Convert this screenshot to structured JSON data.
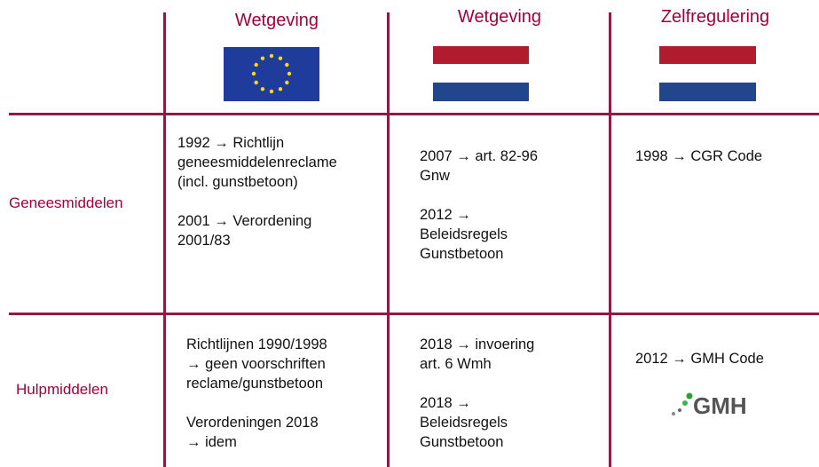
{
  "columns": [
    "Wetgeving",
    "Wetgeving",
    "Zelfregulering"
  ],
  "rows": [
    {
      "label": "Geneesmiddelen",
      "cells": [
        [
          [
            "1992 → Richtlijn",
            "geneesmiddelenreclame",
            "(incl. gunstbetoon)"
          ],
          [
            "2001 → Verordening",
            "2001/83"
          ]
        ],
        [
          [
            "2007 → art. 82-96",
            "Gnw"
          ],
          [
            "2012 →",
            "Beleidsregels",
            "Gunstbetoon"
          ]
        ],
        [
          [
            "1998 → CGR Code"
          ]
        ]
      ]
    },
    {
      "label": "Hulpmiddelen",
      "cells": [
        [
          [
            "Richtlijnen 1990/1998",
            "→ geen voorschriften",
            "reclame/gunstbetoon"
          ],
          [
            "Verordeningen 2018",
            "→ idem"
          ]
        ],
        [
          [
            "2018 → invoering",
            "art. 6 Wmh"
          ],
          [
            "2018 →",
            "Beleidsregels",
            "Gunstbetoon"
          ]
        ],
        [
          [
            "2012 → GMH Code"
          ]
        ]
      ]
    }
  ],
  "logo": "GMH"
}
